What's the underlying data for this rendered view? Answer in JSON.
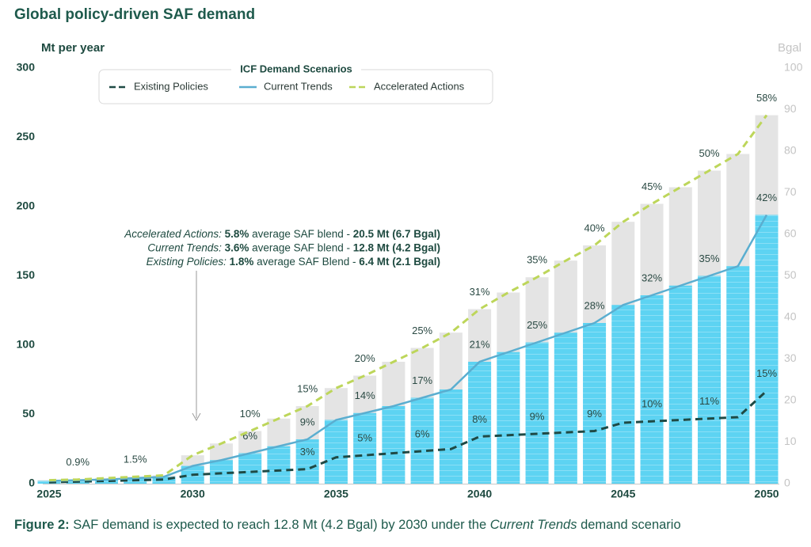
{
  "chart_data": {
    "type": "bar-line",
    "title": "Global policy-driven SAF demand",
    "y_label": "Mt  per year",
    "y2_label": "Bgal",
    "legend_title": "ICF Demand Scenarios",
    "x": [
      2025,
      2026,
      2027,
      2028,
      2029,
      2030,
      2031,
      2032,
      2033,
      2034,
      2035,
      2036,
      2037,
      2038,
      2039,
      2040,
      2041,
      2042,
      2043,
      2044,
      2045,
      2046,
      2047,
      2048,
      2049,
      2050
    ],
    "xlim": [
      2025,
      2050
    ],
    "xticks": [
      2025,
      2030,
      2035,
      2040,
      2045,
      2050
    ],
    "ylim": [
      0,
      300
    ],
    "yticks": [
      0,
      50,
      100,
      150,
      200,
      250,
      300
    ],
    "y2lim": [
      0,
      100
    ],
    "y2ticks": [
      0,
      10,
      20,
      30,
      40,
      50,
      60,
      70,
      80,
      90,
      100
    ],
    "series": [
      {
        "name": "Existing Policies",
        "color": "#1f4a45",
        "dash": true,
        "values": [
          1,
          1.5,
          2,
          2.5,
          3,
          6.4,
          7.5,
          8.5,
          9.5,
          10.5,
          19,
          20.5,
          22,
          23.5,
          25,
          34,
          35,
          36,
          37,
          38,
          44,
          45,
          46,
          47,
          48,
          67
        ],
        "blend_labels": [
          null,
          null,
          null,
          null,
          null,
          null,
          null,
          null,
          null,
          "3%",
          null,
          "5%",
          null,
          "6%",
          null,
          "8%",
          null,
          "9%",
          null,
          "9%",
          null,
          "10%",
          null,
          "11%",
          null,
          "15%"
        ]
      },
      {
        "name": "Current Trends",
        "color": "#5aaed0",
        "dash": false,
        "bar_color": "#5dd3f2",
        "values": [
          2,
          2.5,
          3,
          4,
          5,
          12.8,
          17,
          22,
          27,
          32,
          46,
          51,
          56,
          62,
          68,
          88,
          95,
          102,
          109,
          116,
          129,
          136,
          143,
          150,
          157,
          194
        ],
        "blend_labels": [
          null,
          null,
          null,
          null,
          null,
          null,
          null,
          "6%",
          null,
          "9%",
          null,
          "14%",
          null,
          "17%",
          null,
          "21%",
          null,
          "25%",
          null,
          "28%",
          null,
          "32%",
          null,
          "35%",
          null,
          "42%"
        ]
      },
      {
        "name": "Accelerated Actions",
        "color": "#bdd65a",
        "dash": true,
        "bar_color": "#e4e4e4",
        "values": [
          2.5,
          3,
          4,
          5,
          6,
          20.5,
          29,
          38,
          47,
          56,
          69,
          78,
          88,
          98,
          109,
          126,
          138,
          149,
          161,
          172,
          189,
          202,
          214,
          226,
          238,
          266
        ],
        "blend_labels": [
          null,
          "0.9%",
          null,
          "1.5%",
          null,
          null,
          null,
          "10%",
          null,
          "15%",
          null,
          "20%",
          null,
          "25%",
          null,
          "31%",
          null,
          "35%",
          null,
          "40%",
          null,
          "45%",
          null,
          "50%",
          null,
          "58%"
        ]
      }
    ],
    "annotation": [
      [
        "Accelerated Actions:",
        " 5.8%",
        " average SAF blend - ",
        "20.5 Mt (6.7 Bgal)"
      ],
      [
        "Current Trends:",
        " 3.6%",
        " average SAF blend - ",
        "12.8 Mt (4.2 Bgal)"
      ],
      [
        "Existing Policies:",
        " 1.8%",
        " average SAF Blend - ",
        "6.4 Mt (2.1 Bgal)"
      ]
    ],
    "caption": [
      "Figure 2:",
      " SAF demand is expected to reach 12.8 Mt (4.2 Bgal) by 2030 under the ",
      "Current Trends",
      " demand scenario"
    ]
  }
}
